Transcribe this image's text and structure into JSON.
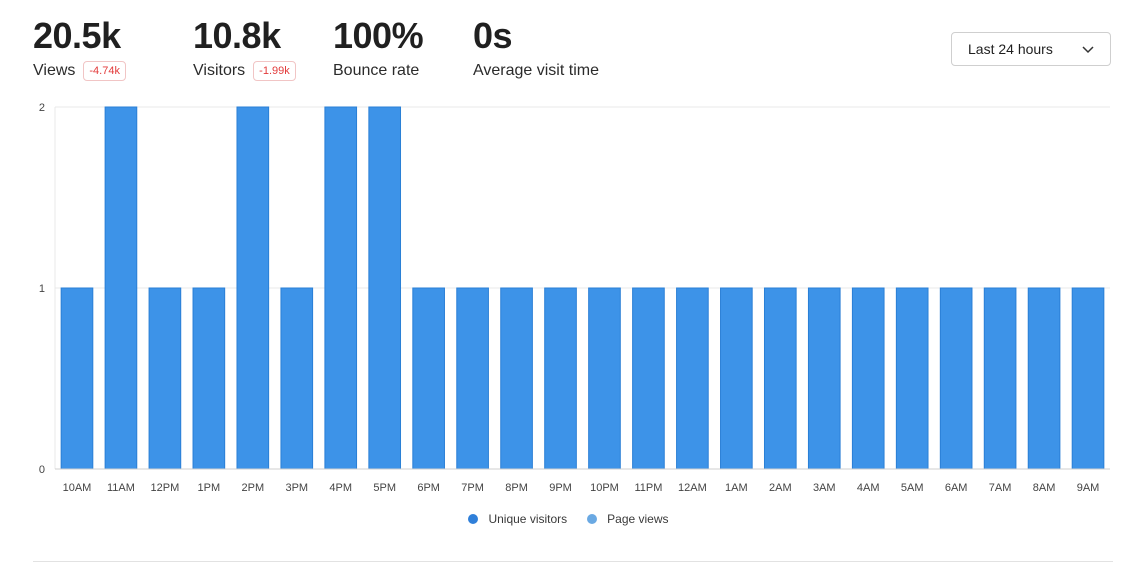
{
  "metrics": [
    {
      "value": "20.5k",
      "label": "Views",
      "delta": "-4.74k"
    },
    {
      "value": "10.8k",
      "label": "Visitors",
      "delta": "-1.99k"
    },
    {
      "value": "100%",
      "label": "Bounce rate"
    },
    {
      "value": "0s",
      "label": "Average visit time"
    }
  ],
  "date_range": {
    "selected": "Last 24 hours"
  },
  "legend": [
    {
      "name": "Unique visitors",
      "color": "#2f7fd9"
    },
    {
      "name": "Page views",
      "color": "#6aa9e3"
    }
  ],
  "colors": {
    "bar_fill": "#3d93e8",
    "bar_stroke": "#2a7fd6",
    "grid": "#e8e8e8",
    "axis_text": "#444444",
    "delta_red": "#e23a3a"
  },
  "chart_data": {
    "type": "bar",
    "categories": [
      "10AM",
      "11AM",
      "12PM",
      "1PM",
      "2PM",
      "3PM",
      "4PM",
      "5PM",
      "6PM",
      "7PM",
      "8PM",
      "9PM",
      "10PM",
      "11PM",
      "12AM",
      "1AM",
      "2AM",
      "3AM",
      "4AM",
      "5AM",
      "6AM",
      "7AM",
      "8AM",
      "9AM"
    ],
    "series": [
      {
        "name": "Unique visitors",
        "values": [
          1,
          2,
          1,
          1,
          2,
          1,
          2,
          2,
          1,
          1,
          1,
          1,
          1,
          1,
          1,
          1,
          1,
          1,
          1,
          1,
          1,
          1,
          1,
          1
        ]
      }
    ],
    "yticks": [
      0,
      1,
      2
    ],
    "ylim": [
      0,
      2
    ],
    "grid": true,
    "legend_position": "bottom"
  }
}
